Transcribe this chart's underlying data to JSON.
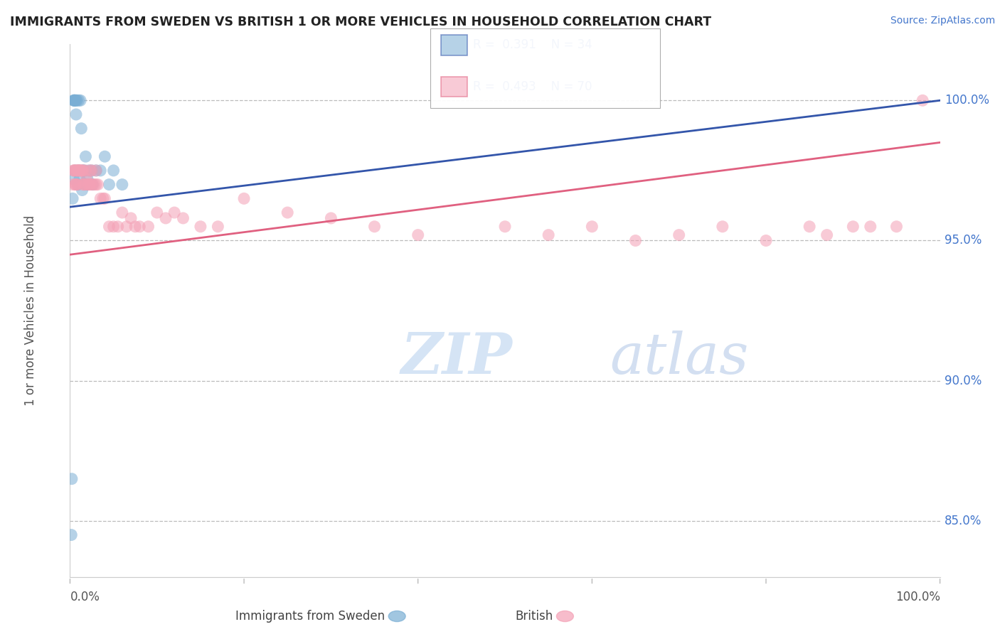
{
  "title": "IMMIGRANTS FROM SWEDEN VS BRITISH 1 OR MORE VEHICLES IN HOUSEHOLD CORRELATION CHART",
  "source_text": "Source: ZipAtlas.com",
  "ylabel": "1 or more Vehicles in Household",
  "y_ticks": [
    85.0,
    90.0,
    95.0,
    100.0
  ],
  "x_range": [
    0.0,
    100.0
  ],
  "y_range": [
    83.0,
    102.0
  ],
  "legend_blue_label": "Immigrants from Sweden",
  "legend_pink_label": "British",
  "r_blue": 0.391,
  "n_blue": 34,
  "r_pink": 0.493,
  "n_pink": 70,
  "blue_color": "#7aaed4",
  "pink_color": "#f4a0b5",
  "blue_line_color": "#3355AA",
  "pink_line_color": "#E06080",
  "watermark_color": "#d5e4f5",
  "blue_scatter_x": [
    0.2,
    0.3,
    0.4,
    0.4,
    0.5,
    0.5,
    0.5,
    0.6,
    0.6,
    0.7,
    0.7,
    0.8,
    0.9,
    1.0,
    1.0,
    1.1,
    1.2,
    1.3,
    1.4,
    1.5,
    1.6,
    1.8,
    1.9,
    2.0,
    2.2,
    2.5,
    2.6,
    3.0,
    3.5,
    4.0,
    4.5,
    5.0,
    6.0,
    0.15
  ],
  "blue_scatter_y": [
    86.5,
    96.5,
    97.2,
    100.0,
    100.0,
    100.0,
    100.0,
    100.0,
    97.5,
    100.0,
    99.5,
    100.0,
    97.0,
    97.5,
    100.0,
    97.2,
    100.0,
    99.0,
    96.8,
    97.5,
    97.5,
    98.0,
    97.0,
    97.2,
    97.5,
    97.5,
    97.0,
    97.5,
    97.5,
    98.0,
    97.0,
    97.5,
    97.0,
    84.5
  ],
  "pink_scatter_x": [
    0.3,
    0.4,
    0.5,
    0.6,
    0.7,
    0.8,
    0.9,
    1.0,
    1.0,
    1.1,
    1.2,
    1.3,
    1.4,
    1.5,
    1.5,
    1.6,
    1.7,
    1.8,
    1.9,
    2.0,
    2.1,
    2.2,
    2.3,
    2.4,
    2.5,
    2.6,
    2.8,
    3.0,
    3.0,
    3.2,
    3.5,
    3.8,
    4.0,
    4.5,
    5.0,
    5.5,
    6.0,
    6.5,
    7.0,
    7.5,
    8.0,
    9.0,
    10.0,
    11.0,
    12.0,
    13.0,
    15.0,
    17.0,
    20.0,
    25.0,
    30.0,
    35.0,
    40.0,
    50.0,
    55.0,
    60.0,
    65.0,
    70.0,
    75.0,
    80.0,
    85.0,
    87.0,
    90.0,
    92.0,
    95.0,
    98.0,
    0.45,
    0.65,
    0.75,
    0.85
  ],
  "pink_scatter_y": [
    97.0,
    97.5,
    97.5,
    97.0,
    97.5,
    97.5,
    97.0,
    97.5,
    97.5,
    97.5,
    97.5,
    97.5,
    97.5,
    97.5,
    97.0,
    97.0,
    97.0,
    97.5,
    97.2,
    97.0,
    97.0,
    97.0,
    97.5,
    97.0,
    97.5,
    97.0,
    97.0,
    97.0,
    97.5,
    97.0,
    96.5,
    96.5,
    96.5,
    95.5,
    95.5,
    95.5,
    96.0,
    95.5,
    95.8,
    95.5,
    95.5,
    95.5,
    96.0,
    95.8,
    96.0,
    95.8,
    95.5,
    95.5,
    96.5,
    96.0,
    95.8,
    95.5,
    95.2,
    95.5,
    95.2,
    95.5,
    95.0,
    95.2,
    95.5,
    95.0,
    95.5,
    95.2,
    95.5,
    95.5,
    95.5,
    100.0,
    97.5,
    97.0,
    97.0,
    97.5
  ],
  "blue_trend": [
    96.2,
    100.0
  ],
  "pink_trend": [
    94.5,
    98.5
  ],
  "x_tick_positions": [
    0,
    20,
    40,
    60,
    80,
    100
  ]
}
